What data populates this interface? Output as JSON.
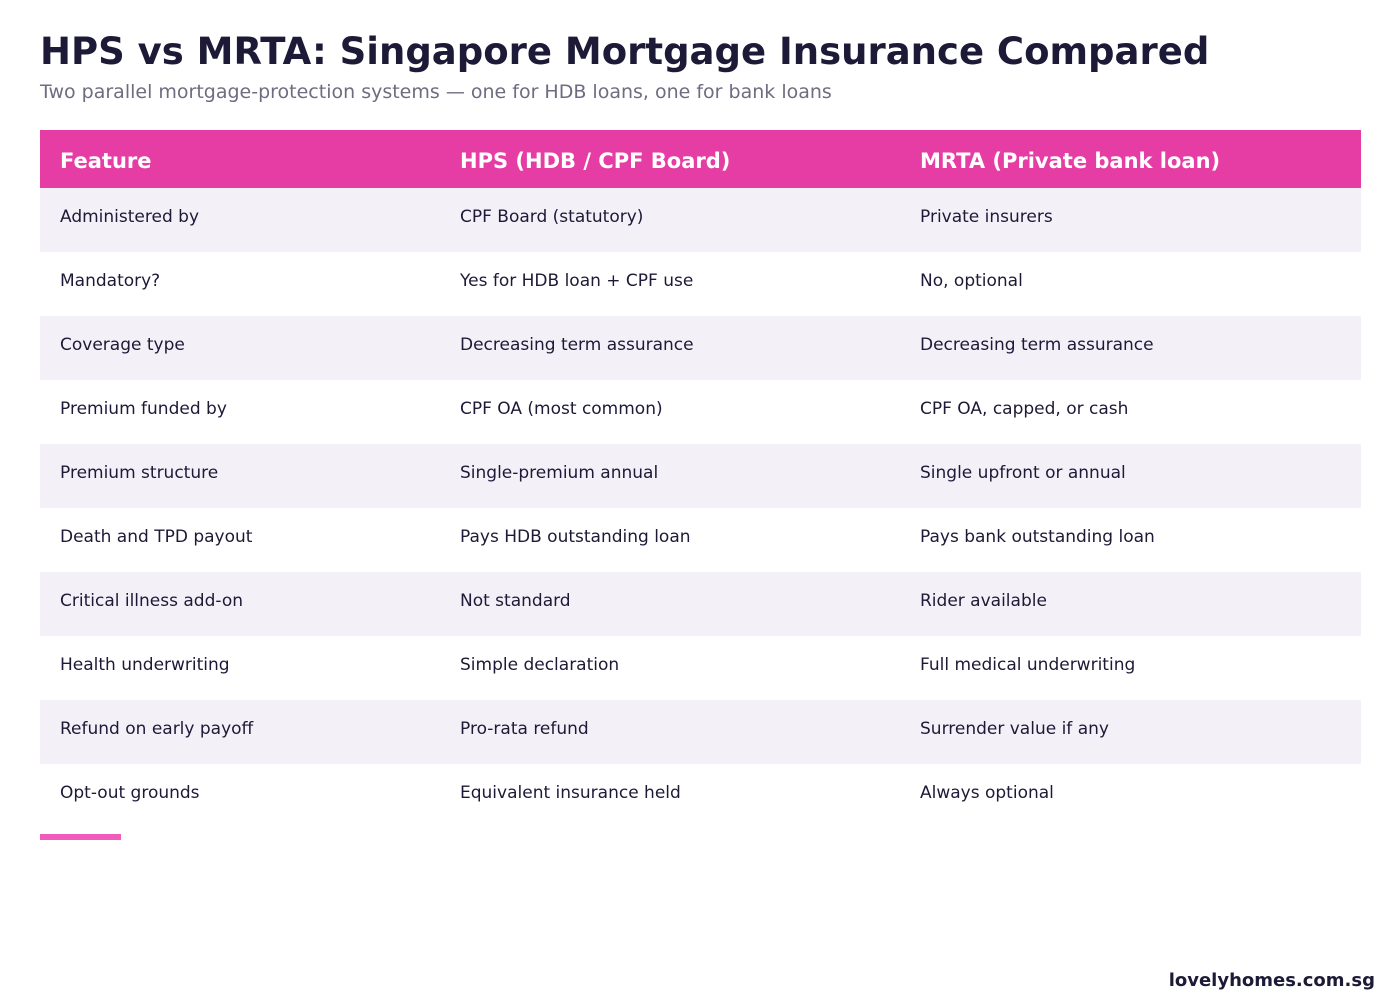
{
  "header": {
    "title": "HPS vs MRTA: Singapore Mortgage Insurance Compared",
    "subtitle": "Two parallel mortgage-protection systems — one for HDB loans, one for bank loans"
  },
  "table": {
    "columns": [
      "Feature",
      "HPS (HDB / CPF Board)",
      "MRTA (Private bank loan)"
    ],
    "rows": [
      [
        "Administered by",
        "CPF Board (statutory)",
        "Private insurers"
      ],
      [
        "Mandatory?",
        "Yes for HDB loan + CPF use",
        "No, optional"
      ],
      [
        "Coverage type",
        "Decreasing term assurance",
        "Decreasing term assurance"
      ],
      [
        "Premium funded by",
        "CPF OA (most common)",
        "CPF OA, capped, or cash"
      ],
      [
        "Premium structure",
        "Single-premium annual",
        "Single upfront or annual"
      ],
      [
        "Death and TPD payout",
        "Pays HDB outstanding loan",
        "Pays bank outstanding loan"
      ],
      [
        "Critical illness add-on",
        "Not standard",
        "Rider available"
      ],
      [
        "Health underwriting",
        "Simple declaration",
        "Full medical underwriting"
      ],
      [
        "Refund on early payoff",
        "Pro-rata refund",
        "Surrender value if any"
      ],
      [
        "Opt-out grounds",
        "Equivalent insurance held",
        "Always optional"
      ]
    ]
  },
  "footer": {
    "brand": "lovelyhomes.com.sg"
  },
  "colors": {
    "header_bg": "#e63da5",
    "row_alt": "#f4f0f8",
    "accent": "#f05cbc",
    "text": "#1c1a36",
    "muted": "#6e6c80"
  }
}
